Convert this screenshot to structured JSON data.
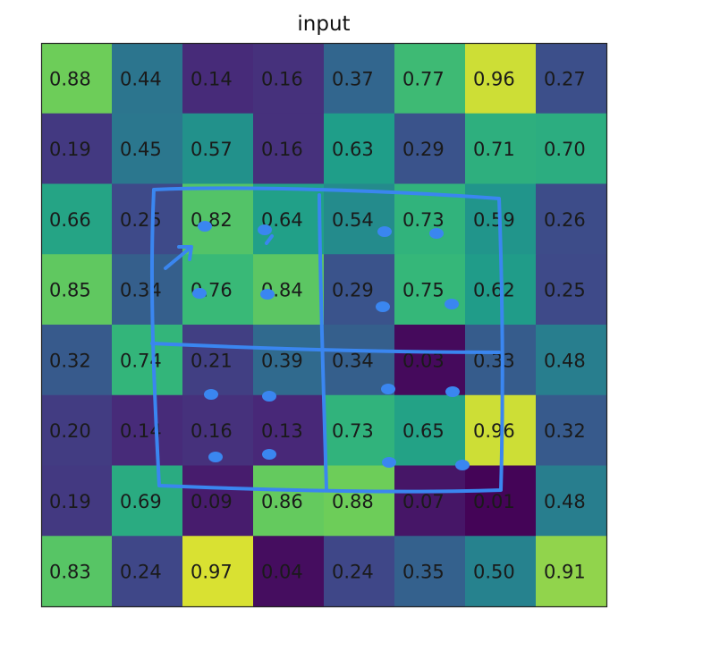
{
  "chart_data": {
    "type": "heatmap",
    "title": "input",
    "colormap": "viridis",
    "rows": [
      [
        "0.88",
        "0.44",
        "0.14",
        "0.16",
        "0.37",
        "0.77",
        "0.96",
        "0.27"
      ],
      [
        "0.19",
        "0.45",
        "0.57",
        "0.16",
        "0.63",
        "0.29",
        "0.71",
        "0.70"
      ],
      [
        "0.66",
        "0.25",
        "0.82",
        "0.64",
        "0.54",
        "0.73",
        "0.59",
        "0.26"
      ],
      [
        "0.85",
        "0.34",
        "0.76",
        "0.84",
        "0.29",
        "0.75",
        "0.62",
        "0.25"
      ],
      [
        "0.32",
        "0.74",
        "0.21",
        "0.39",
        "0.34",
        "0.03",
        "0.33",
        "0.48"
      ],
      [
        "0.20",
        "0.14",
        "0.16",
        "0.13",
        "0.73",
        "0.65",
        "0.96",
        "0.32"
      ],
      [
        "0.19",
        "0.69",
        "0.09",
        "0.86",
        "0.88",
        "0.07",
        "0.01",
        "0.48"
      ],
      [
        "0.83",
        "0.24",
        "0.97",
        "0.04",
        "0.24",
        "0.35",
        "0.50",
        "0.91"
      ]
    ],
    "vrange": [
      0,
      1
    ],
    "grid": false,
    "legend": "none"
  },
  "annotations": {
    "ink_color": "#3a86f0",
    "description_items": [
      "pen-arrow",
      "2x2 pooling windows",
      "dots on cells"
    ]
  }
}
